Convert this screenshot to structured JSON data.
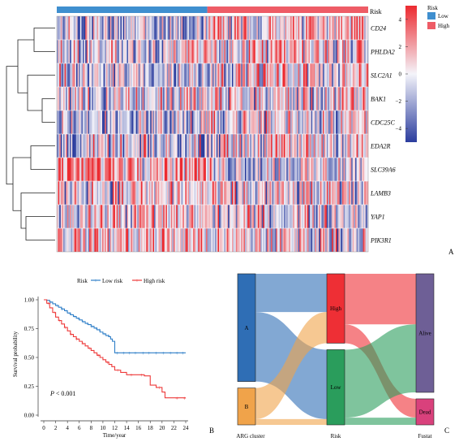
{
  "figure": {
    "panel_labels": [
      "A",
      "B",
      "C"
    ]
  },
  "chart_data": [
    {
      "type": "heatmap",
      "panel": "A",
      "rows": [
        "CD24",
        "PHLDA2",
        "SLC2A1",
        "BAK1",
        "CDC25C",
        "EDA2R",
        "SLC39A6",
        "LAMB3",
        "YAP1",
        "PIK3R1"
      ],
      "annotation": {
        "label": "Risk",
        "groups": [
          {
            "name": "Low",
            "color": "#3f8fcf",
            "fraction": 0.485
          },
          {
            "name": "High",
            "color": "#ee5c66",
            "fraction": 0.515
          }
        ]
      },
      "colorbar": {
        "ticks": [
          "4",
          "2",
          "0",
          "−2",
          "−4"
        ],
        "tick_values": [
          4,
          2,
          0,
          -2,
          -4
        ],
        "range": [
          -5,
          5
        ],
        "colors": {
          "low": "#2b3d9e",
          "mid": "#f4f4fa",
          "high": "#ec2a30"
        }
      },
      "legend": {
        "title": "Risk",
        "items": [
          {
            "label": "Low",
            "color": "#3f8fcf"
          },
          {
            "label": "High",
            "color": "#ee5c66"
          }
        ],
        "placement": "right"
      },
      "row_mean_low": [
        -0.6,
        0.0,
        -0.4,
        0.0,
        -0.5,
        -0.5,
        1.2,
        0.2,
        0.3,
        0.5
      ],
      "row_mean_high": [
        0.4,
        0.3,
        0.3,
        0.0,
        0.1,
        0.2,
        -0.2,
        -0.1,
        0.0,
        0.1
      ]
    },
    {
      "type": "line",
      "panel": "B",
      "title": "",
      "xlabel": "Time/year",
      "ylabel": "Survival probability",
      "xlim": [
        0,
        24
      ],
      "ylim": [
        0,
        1
      ],
      "xticks": [
        "0",
        "2",
        "4",
        "6",
        "8",
        "10",
        "12",
        "14",
        "16",
        "18",
        "20",
        "22",
        "24"
      ],
      "yticks": [
        "0.00",
        "0.25",
        "0.50",
        "0.75",
        "1.00"
      ],
      "legend": {
        "title": "Risk",
        "placement": "top",
        "items": [
          "Low risk",
          "High risk"
        ]
      },
      "annotation": {
        "p_italic": "P",
        "p_text": " < 0.001"
      },
      "series": [
        {
          "name": "Low risk",
          "color": "#2f7fc8",
          "x": [
            0,
            0.5,
            1,
            1.5,
            2,
            2.5,
            3,
            3.5,
            4,
            4.5,
            5,
            5.5,
            6,
            6.5,
            7,
            7.5,
            8,
            8.5,
            9,
            9.5,
            10,
            10.5,
            11,
            11.3,
            11.6,
            12,
            24
          ],
          "y": [
            1.0,
            0.995,
            0.98,
            0.965,
            0.95,
            0.935,
            0.92,
            0.905,
            0.885,
            0.87,
            0.855,
            0.84,
            0.825,
            0.81,
            0.795,
            0.785,
            0.77,
            0.755,
            0.74,
            0.72,
            0.705,
            0.69,
            0.68,
            0.66,
            0.64,
            0.54,
            0.54
          ],
          "censor_x": [
            1.2,
            2.3,
            3.1,
            3.8,
            4.4,
            5.2,
            5.9,
            6.7,
            7.3,
            8.1,
            8.8,
            9.4,
            10.2,
            10.9,
            12.4,
            13.5,
            14.5,
            15.5,
            16.8,
            17.8,
            19,
            20.2,
            21.4,
            22.5,
            23.5
          ]
        },
        {
          "name": "High risk",
          "color": "#ee3a3a",
          "x": [
            0,
            0.5,
            1,
            1.5,
            2,
            2.5,
            3,
            3.5,
            4,
            4.5,
            5,
            5.5,
            6,
            6.5,
            7,
            7.5,
            8,
            8.5,
            9,
            9.5,
            10,
            10.5,
            11,
            11.5,
            12,
            13,
            14,
            15,
            16,
            17,
            18,
            19,
            20,
            20.5,
            21,
            22,
            23,
            24
          ],
          "y": [
            1.0,
            0.97,
            0.93,
            0.89,
            0.85,
            0.82,
            0.79,
            0.76,
            0.73,
            0.7,
            0.68,
            0.66,
            0.64,
            0.62,
            0.6,
            0.58,
            0.56,
            0.54,
            0.52,
            0.5,
            0.48,
            0.46,
            0.44,
            0.42,
            0.39,
            0.37,
            0.35,
            0.35,
            0.35,
            0.34,
            0.26,
            0.24,
            0.2,
            0.15,
            0.15,
            0.15,
            0.15,
            0.15
          ],
          "censor_x": [
            0.8,
            1.8,
            2.7,
            3.6,
            4.6,
            5.6,
            6.6,
            7.8,
            9.2,
            10.8,
            12.5,
            14.8,
            16.5,
            19.5,
            22.5,
            23.8
          ]
        }
      ]
    },
    {
      "type": "sankey",
      "panel": "C",
      "axes": [
        "ARG cluster",
        "Risk",
        "Fustat"
      ],
      "nodes": [
        {
          "column": 0,
          "name": "A",
          "value": 0.745,
          "color": "#2f6eb5"
        },
        {
          "column": 0,
          "name": "B",
          "value": 0.255,
          "color": "#f0a34a"
        },
        {
          "column": 1,
          "name": "High",
          "value": 0.48,
          "color": "#ee2f35"
        },
        {
          "column": 1,
          "name": "Low",
          "value": 0.52,
          "color": "#2a9d5c"
        },
        {
          "column": 2,
          "name": "Alive",
          "value": 0.82,
          "color": "#6e5f96"
        },
        {
          "column": 2,
          "name": "Dead",
          "value": 0.18,
          "color": "#d9417c"
        }
      ],
      "links": [
        {
          "source": "A",
          "target": "High",
          "value": 0.265
        },
        {
          "source": "A",
          "target": "Low",
          "value": 0.48
        },
        {
          "source": "B",
          "target": "High",
          "value": 0.215
        },
        {
          "source": "B",
          "target": "Low",
          "value": 0.04
        },
        {
          "source": "High",
          "target": "Alive",
          "value": 0.35
        },
        {
          "source": "High",
          "target": "Dead",
          "value": 0.13
        },
        {
          "source": "Low",
          "target": "Alive",
          "value": 0.47
        },
        {
          "source": "Low",
          "target": "Dead",
          "value": 0.05
        }
      ]
    }
  ]
}
